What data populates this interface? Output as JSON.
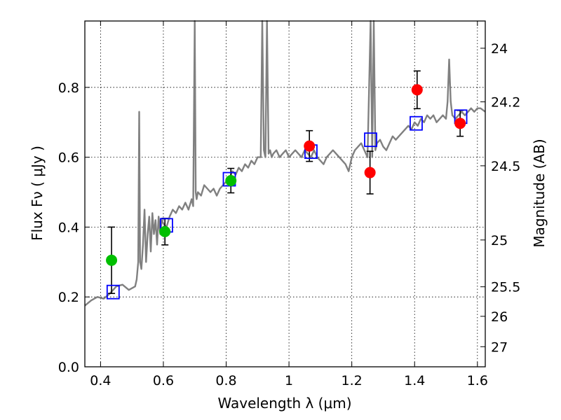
{
  "chart_data": {
    "type": "scatter",
    "xlabel": "Wavelength  λ (μm)",
    "ylabel": "Flux  Fν  ( μJy )",
    "ylabel_right": "Magnitude (AB)",
    "xlim": [
      0.35,
      1.625
    ],
    "ylim": [
      0,
      0.99
    ],
    "x_ticks": [
      {
        "v": 0.4,
        "label": "0.4"
      },
      {
        "v": 0.6,
        "label": "0.6"
      },
      {
        "v": 0.8,
        "label": "0.8"
      },
      {
        "v": 1.0,
        "label": "1"
      },
      {
        "v": 1.2,
        "label": "1.2"
      },
      {
        "v": 1.4,
        "label": "1.4"
      },
      {
        "v": 1.6,
        "label": "1.6"
      }
    ],
    "y_ticks": [
      {
        "v": 0.0,
        "label": "0.0"
      },
      {
        "v": 0.2,
        "label": "0.2"
      },
      {
        "v": 0.4,
        "label": "0.4"
      },
      {
        "v": 0.6,
        "label": "0.6"
      },
      {
        "v": 0.8,
        "label": "0.8"
      }
    ],
    "right_ticks": [
      {
        "v": 24,
        "label": "24"
      },
      {
        "v": 24.2,
        "label": "24.2"
      },
      {
        "v": 24.5,
        "label": "24.5"
      },
      {
        "v": 25,
        "label": "25"
      },
      {
        "v": 25.5,
        "label": "25.5"
      },
      {
        "v": 26,
        "label": "26"
      },
      {
        "v": 27,
        "label": "27"
      }
    ],
    "grid": true,
    "colors": {
      "spectrum": "#808080",
      "green_points": "#00bf00",
      "red_points": "#ff0000",
      "model_boxes": "#0000ff",
      "errorbars": "#000000"
    },
    "series": [
      {
        "kind": "spectrum",
        "x": [
          0.35,
          0.37,
          0.39,
          0.41,
          0.43,
          0.45,
          0.47,
          0.49,
          0.51,
          0.515,
          0.52,
          0.523,
          0.526,
          0.53,
          0.535,
          0.54,
          0.545,
          0.55,
          0.555,
          0.56,
          0.565,
          0.57,
          0.575,
          0.58,
          0.585,
          0.59,
          0.595,
          0.6,
          0.61,
          0.62,
          0.63,
          0.64,
          0.65,
          0.66,
          0.67,
          0.68,
          0.69,
          0.695,
          0.7,
          0.703,
          0.706,
          0.71,
          0.72,
          0.73,
          0.74,
          0.75,
          0.76,
          0.77,
          0.78,
          0.79,
          0.8,
          0.81,
          0.82,
          0.83,
          0.84,
          0.85,
          0.86,
          0.87,
          0.88,
          0.89,
          0.9,
          0.91,
          0.915,
          0.92,
          0.925,
          0.93,
          0.935,
          0.94,
          0.945,
          0.95,
          0.96,
          0.97,
          0.98,
          0.99,
          1.0,
          1.01,
          1.02,
          1.03,
          1.04,
          1.05,
          1.06,
          1.07,
          1.08,
          1.09,
          1.1,
          1.11,
          1.12,
          1.13,
          1.14,
          1.15,
          1.16,
          1.17,
          1.18,
          1.19,
          1.2,
          1.21,
          1.22,
          1.23,
          1.24,
          1.25,
          1.26,
          1.265,
          1.27,
          1.275,
          1.28,
          1.29,
          1.3,
          1.31,
          1.32,
          1.33,
          1.34,
          1.35,
          1.36,
          1.37,
          1.38,
          1.39,
          1.4,
          1.41,
          1.42,
          1.43,
          1.44,
          1.45,
          1.46,
          1.47,
          1.48,
          1.49,
          1.5,
          1.505,
          1.51,
          1.515,
          1.52,
          1.53,
          1.54,
          1.55,
          1.56,
          1.57,
          1.58,
          1.59,
          1.6,
          1.61,
          1.625
        ],
        "y": [
          0.175,
          0.19,
          0.2,
          0.195,
          0.21,
          0.23,
          0.235,
          0.22,
          0.23,
          0.25,
          0.3,
          0.73,
          0.3,
          0.28,
          0.35,
          0.45,
          0.3,
          0.38,
          0.43,
          0.33,
          0.44,
          0.38,
          0.42,
          0.35,
          0.43,
          0.38,
          0.42,
          0.41,
          0.4,
          0.43,
          0.45,
          0.44,
          0.46,
          0.45,
          0.47,
          0.45,
          0.48,
          0.46,
          0.99,
          0.5,
          0.48,
          0.5,
          0.49,
          0.52,
          0.51,
          0.5,
          0.51,
          0.49,
          0.51,
          0.52,
          0.53,
          0.54,
          0.56,
          0.55,
          0.57,
          0.56,
          0.58,
          0.57,
          0.59,
          0.58,
          0.6,
          0.6,
          0.99,
          0.62,
          0.6,
          0.99,
          0.61,
          0.62,
          0.6,
          0.61,
          0.62,
          0.6,
          0.61,
          0.62,
          0.6,
          0.61,
          0.62,
          0.61,
          0.6,
          0.62,
          0.61,
          0.6,
          0.62,
          0.6,
          0.59,
          0.58,
          0.6,
          0.61,
          0.62,
          0.61,
          0.6,
          0.59,
          0.58,
          0.56,
          0.6,
          0.62,
          0.63,
          0.64,
          0.62,
          0.6,
          0.99,
          0.6,
          0.99,
          0.62,
          0.64,
          0.65,
          0.63,
          0.62,
          0.64,
          0.66,
          0.65,
          0.66,
          0.67,
          0.68,
          0.69,
          0.68,
          0.7,
          0.69,
          0.71,
          0.7,
          0.72,
          0.71,
          0.72,
          0.7,
          0.71,
          0.72,
          0.71,
          0.76,
          0.88,
          0.76,
          0.72,
          0.71,
          0.72,
          0.73,
          0.72,
          0.73,
          0.74,
          0.73,
          0.74,
          0.74,
          0.73
        ]
      },
      {
        "kind": "green-points",
        "points": [
          {
            "x": 0.435,
            "y": 0.305,
            "err": 0.095
          },
          {
            "x": 0.605,
            "y": 0.387,
            "err": 0.038
          },
          {
            "x": 0.815,
            "y": 0.533,
            "err": 0.035
          }
        ]
      },
      {
        "kind": "red-points",
        "points": [
          {
            "x": 1.065,
            "y": 0.632,
            "err": 0.044
          },
          {
            "x": 1.258,
            "y": 0.556,
            "err": 0.061
          },
          {
            "x": 1.408,
            "y": 0.793,
            "err": 0.054
          },
          {
            "x": 1.545,
            "y": 0.697,
            "err": 0.037
          }
        ]
      },
      {
        "kind": "model-boxes",
        "points": [
          {
            "x": 0.44,
            "y": 0.214
          },
          {
            "x": 0.61,
            "y": 0.405
          },
          {
            "x": 0.81,
            "y": 0.537
          },
          {
            "x": 1.07,
            "y": 0.616
          },
          {
            "x": 1.26,
            "y": 0.65
          },
          {
            "x": 1.405,
            "y": 0.697
          },
          {
            "x": 1.547,
            "y": 0.716
          }
        ]
      }
    ]
  }
}
